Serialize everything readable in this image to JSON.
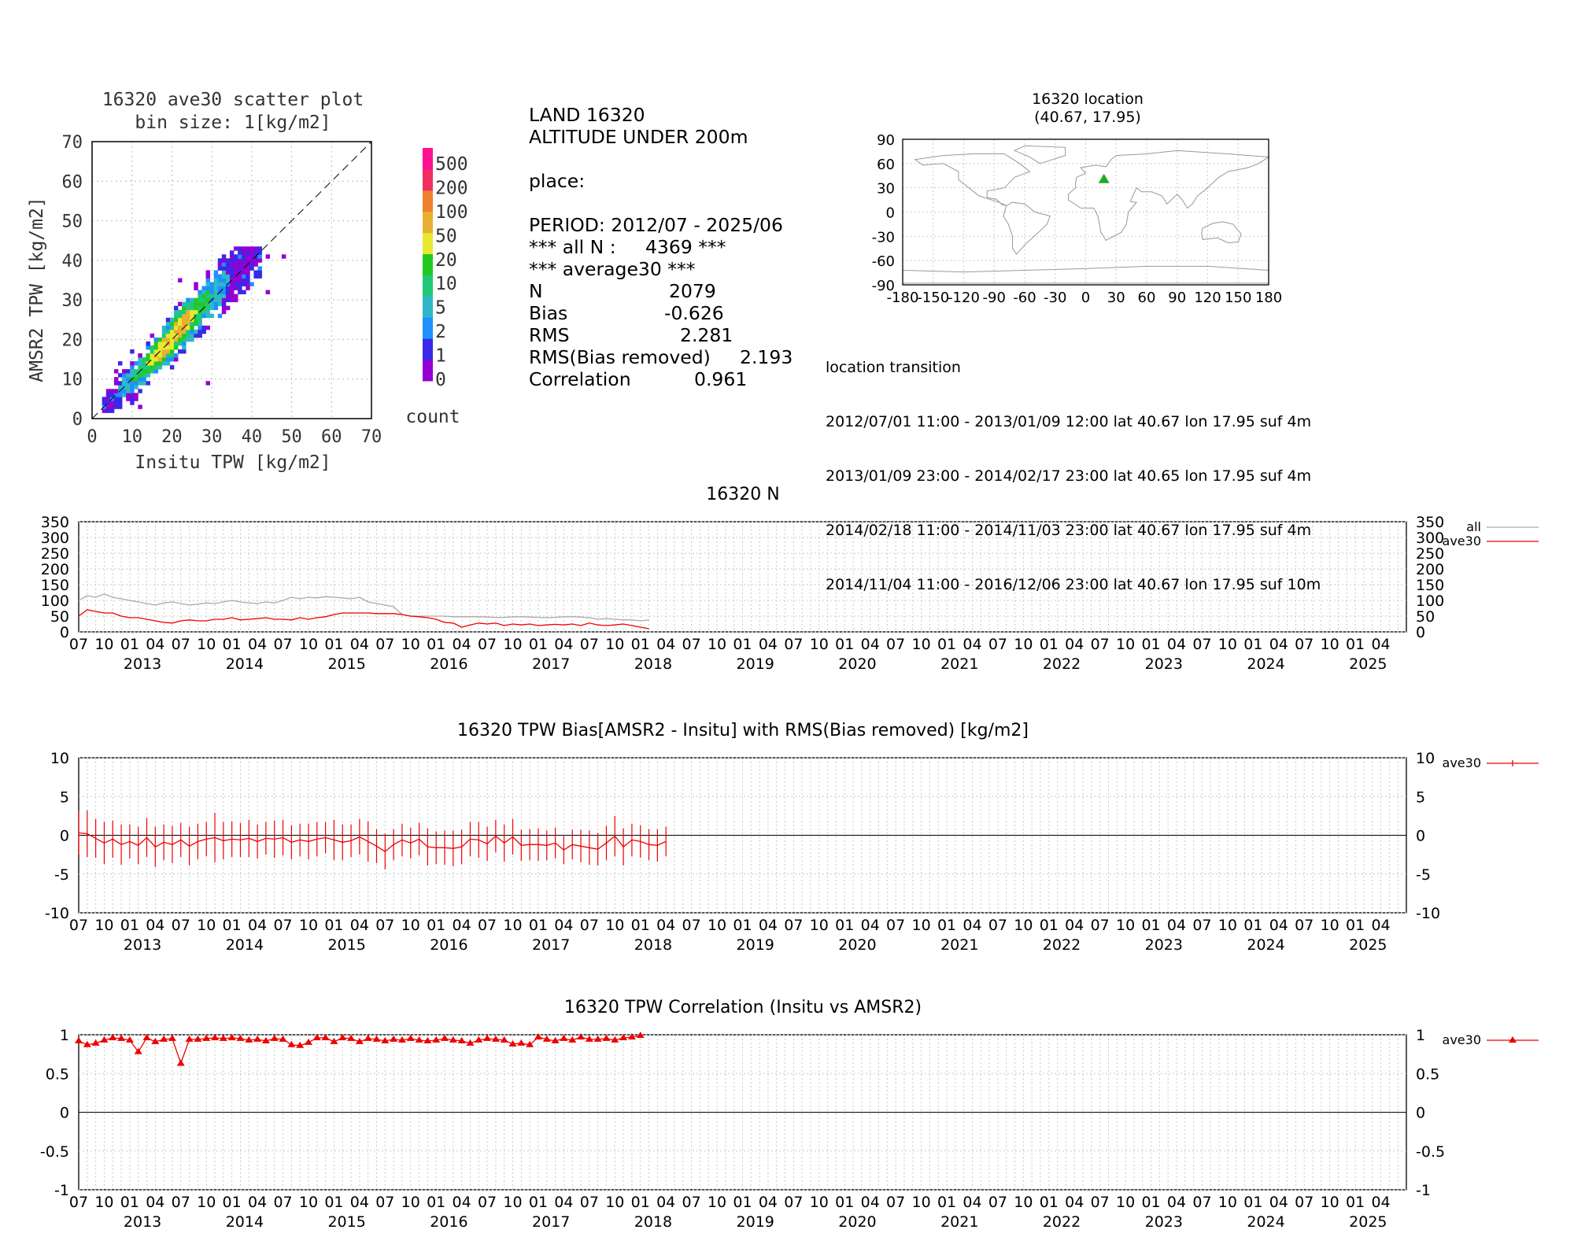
{
  "scatter": {
    "title1": "16320 ave30 scatter plot",
    "title2": "bin size: 1[kg/m2]",
    "xlabel": "Insitu TPW [kg/m2]",
    "ylabel": "AMSR2 TPW [kg/m2]",
    "colorbar_label": "count",
    "colorbar_levels": [
      "0",
      "1",
      "2",
      "5",
      "10",
      "20",
      "50",
      "100",
      "200",
      "500"
    ],
    "colorbar_colors": [
      "#9400d3",
      "#3b28e8",
      "#1e90ff",
      "#2fb8c8",
      "#20c878",
      "#22c822",
      "#e8e830",
      "#e8b030",
      "#f08030",
      "#f03060",
      "#ff1090"
    ]
  },
  "stats": {
    "line1": "LAND 16320",
    "line2": "ALTITUDE UNDER 200m",
    "place_label": "place:",
    "period": "PERIOD: 2012/07 - 2025/06",
    "all_n": "*** all N :     4369 ***",
    "average": "*** average30 ***",
    "rows": [
      {
        "k": "N",
        "v": "2079"
      },
      {
        "k": "Bias",
        "v": "-0.626"
      },
      {
        "k": "RMS",
        "v": "2.281"
      },
      {
        "k": "RMS(Bias removed)",
        "v": "2.193"
      },
      {
        "k": "Correlation",
        "v": "0.961"
      }
    ]
  },
  "location": {
    "title1": "16320 location",
    "title2": "(40.67, 17.95)",
    "lat": 40.67,
    "lon": 17.95,
    "marker_color": "#22aa22",
    "xticks": [
      "-180",
      "-150",
      "-120",
      "-90",
      "-60",
      "-30",
      "0",
      "30",
      "60",
      "90",
      "120",
      "150",
      "180"
    ],
    "yticks": [
      "90",
      "60",
      "30",
      "0",
      "-30",
      "-60",
      "-90"
    ],
    "transition_title": "location transition",
    "transitions": [
      "2012/07/01 11:00 - 2013/01/09 12:00 lat 40.67 lon 17.95 suf 4m",
      "2013/01/09 23:00 - 2014/02/17 23:00 lat 40.65 lon 17.95 suf 4m",
      "2014/02/18 11:00 - 2014/11/03 23:00 lat 40.67 lon 17.95 suf 4m",
      "2014/11/04 11:00 - 2016/12/06 23:00 lat 40.67 lon 17.95 suf 10m"
    ]
  },
  "timeseries_axis": {
    "month_labels": [
      "07",
      "10",
      "01",
      "04"
    ],
    "years": [
      "2013",
      "2014",
      "2015",
      "2016",
      "2017",
      "2018",
      "2019",
      "2020",
      "2021",
      "2022",
      "2023",
      "2024",
      "2025"
    ]
  },
  "chart_data": [
    {
      "type": "heatmap",
      "title": "16320 ave30 scatter plot",
      "subtitle": "bin size: 1[kg/m2]",
      "xlabel": "Insitu TPW [kg/m2]",
      "ylabel": "AMSR2 TPW [kg/m2]",
      "xlim": [
        0,
        70
      ],
      "ylim": [
        0,
        70
      ],
      "xticks": [
        0,
        10,
        20,
        30,
        40,
        50,
        60,
        70
      ],
      "yticks": [
        0,
        10,
        20,
        30,
        40,
        50,
        60,
        70
      ],
      "grid": true,
      "note": "2D histogram of 2079 pairs along diagonal 3-43 kg/m2; dashed 1:1 line"
    },
    {
      "type": "line",
      "title": "16320 N",
      "ylim": [
        0,
        350
      ],
      "yticks": [
        0,
        50,
        100,
        150,
        200,
        250,
        300,
        350
      ],
      "legend_position": "right",
      "x_start": "2012-07",
      "x_end": "2025-06",
      "series": [
        {
          "name": "all",
          "color": "#aaaaaa",
          "values": [
            100,
            115,
            110,
            120,
            110,
            105,
            100,
            95,
            90,
            85,
            92,
            95,
            90,
            85,
            88,
            92,
            90,
            95,
            100,
            95,
            92,
            90,
            95,
            92,
            100,
            110,
            105,
            110,
            108,
            112,
            110,
            108,
            105,
            110,
            95,
            90,
            85,
            80,
            55,
            50,
            50,
            50,
            50,
            50,
            48,
            48,
            48,
            48,
            47,
            46,
            46,
            48,
            48,
            47,
            46,
            45,
            46,
            48,
            48,
            47,
            45,
            40,
            42,
            40,
            38,
            38,
            35,
            38
          ]
        },
        {
          "name": "ave30",
          "color": "#ee0000",
          "values": [
            50,
            70,
            65,
            60,
            60,
            50,
            45,
            45,
            40,
            35,
            30,
            28,
            35,
            38,
            35,
            35,
            40,
            40,
            45,
            38,
            40,
            42,
            45,
            40,
            40,
            38,
            45,
            40,
            45,
            48,
            55,
            60,
            60,
            60,
            60,
            58,
            58,
            58,
            55,
            50,
            48,
            45,
            40,
            30,
            28,
            15,
            22,
            28,
            25,
            28,
            20,
            25,
            22,
            25,
            20,
            22,
            24,
            22,
            25,
            20,
            28,
            22,
            20,
            22,
            25,
            20,
            15,
            10
          ]
        }
      ]
    },
    {
      "type": "line",
      "title": "16320 TPW Bias[AMSR2 - Insitu] with RMS(Bias removed) [kg/m2]",
      "ylim": [
        -10,
        10
      ],
      "yticks": [
        -10,
        -5,
        0,
        5,
        10
      ],
      "legend_position": "right",
      "x_start": "2012-07",
      "x_end": "2025-06",
      "series": [
        {
          "name": "ave30",
          "color": "#ee0000",
          "values": [
            0.3,
            0.2,
            -0.4,
            -1.0,
            -0.5,
            -1.2,
            -0.8,
            -1.3,
            -0.3,
            -1.5,
            -0.9,
            -1.2,
            -0.6,
            -1.4,
            -0.8,
            -0.5,
            -0.3,
            -0.7,
            -0.5,
            -0.6,
            -0.4,
            -0.8,
            -0.4,
            -0.5,
            -0.3,
            -0.9,
            -0.6,
            -0.8,
            -0.5,
            -0.3,
            -0.6,
            -0.9,
            -0.7,
            -0.2,
            -0.8,
            -1.4,
            -2.1,
            -1.2,
            -0.6,
            -1.0,
            -0.5,
            -1.5,
            -1.6,
            -1.6,
            -1.7,
            -1.5,
            -0.5,
            -0.6,
            -1.1,
            -0.1,
            -1.0,
            -0.2,
            -1.3,
            -1.2,
            -1.2,
            -1.3,
            -1.0,
            -1.9,
            -1.2,
            -1.4,
            -1.6,
            -1.8,
            -1.0,
            -0.1,
            -1.5,
            -0.6,
            -0.8,
            -1.2,
            -1.3,
            -0.8
          ],
          "errors": [
            2.8,
            3.0,
            2.5,
            2.7,
            2.4,
            2.6,
            2.2,
            2.4,
            2.5,
            2.6,
            2.3,
            2.4,
            2.2,
            2.5,
            2.3,
            2.2,
            3.2,
            2.4,
            2.3,
            2.2,
            2.4,
            2.2,
            2.1,
            2.4,
            2.3,
            2.2,
            2.1,
            2.3,
            2.2,
            2.0,
            2.6,
            2.3,
            2.1,
            2.3,
            2.6,
            2.2,
            2.3,
            2.0,
            2.1,
            2.0,
            2.1,
            2.4,
            2.1,
            2.2,
            2.3,
            2.2,
            2.2,
            2.3,
            2.2,
            2.1,
            2.4,
            2.3,
            2.0,
            2.0,
            2.1,
            1.9,
            2.0,
            1.8,
            1.9,
            2.1,
            2.2,
            2.1,
            2.2,
            2.6,
            2.4,
            2.1,
            2.1,
            2.0,
            2.1,
            1.9
          ]
        }
      ]
    },
    {
      "type": "line",
      "title": "16320 TPW Correlation (Insitu vs AMSR2)",
      "ylim": [
        -1,
        1
      ],
      "yticks": [
        -1,
        -0.5,
        0,
        0.5,
        1
      ],
      "legend_position": "right",
      "x_start": "2012-07",
      "x_end": "2025-06",
      "series": [
        {
          "name": "ave30",
          "color": "#ee0000",
          "marker": "triangle",
          "values": [
            0.92,
            0.87,
            0.89,
            0.93,
            0.96,
            0.95,
            0.93,
            0.78,
            0.96,
            0.91,
            0.94,
            0.95,
            0.63,
            0.94,
            0.94,
            0.95,
            0.96,
            0.95,
            0.96,
            0.95,
            0.93,
            0.94,
            0.92,
            0.95,
            0.94,
            0.87,
            0.86,
            0.9,
            0.96,
            0.96,
            0.91,
            0.96,
            0.95,
            0.91,
            0.95,
            0.94,
            0.92,
            0.94,
            0.93,
            0.95,
            0.93,
            0.92,
            0.93,
            0.95,
            0.93,
            0.92,
            0.89,
            0.93,
            0.95,
            0.94,
            0.93,
            0.88,
            0.89,
            0.87,
            0.97,
            0.94,
            0.92,
            0.95,
            0.93,
            0.97,
            0.94,
            0.94,
            0.95,
            0.93,
            0.96,
            0.97,
            0.99
          ]
        }
      ]
    }
  ]
}
